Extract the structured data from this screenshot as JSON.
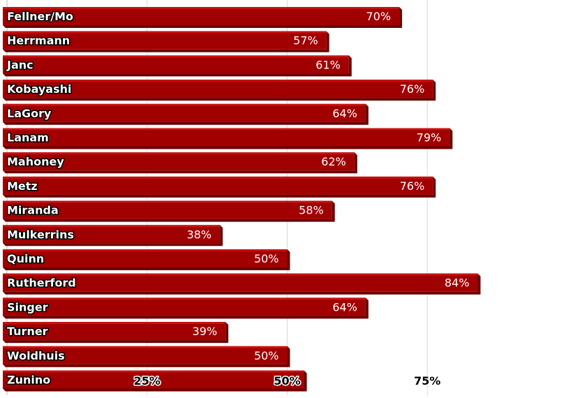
{
  "chart_data": {
    "type": "bar",
    "orientation": "horizontal",
    "categories": [
      "Fellner/Mo",
      "Herrmann",
      "Janc",
      "Kobayashi",
      "LaGory",
      "Lanam",
      "Mahoney",
      "Metz",
      "Miranda",
      "Mulkerrins",
      "Quinn",
      "Rutherford",
      "Singer",
      "Turner",
      "Woldhuis",
      "Zunino"
    ],
    "values": [
      70,
      57,
      61,
      76,
      64,
      79,
      62,
      76,
      58,
      38,
      50,
      84,
      64,
      39,
      50,
      53
    ],
    "value_labels": [
      "70%",
      "57%",
      "61%",
      "76%",
      "64%",
      "79%",
      "62%",
      "76%",
      "58%",
      "38%",
      "50%",
      "84%",
      "64%",
      "39%",
      "50%",
      ""
    ],
    "x_ticks": [
      25,
      50,
      75
    ],
    "x_tick_labels": [
      "25%",
      "50%",
      "75%"
    ],
    "xlim": [
      0,
      100
    ],
    "grid": true,
    "legend": "none",
    "colors": {
      "bar": "#a00000",
      "bar_top": "#c81010",
      "bar_side": "#6a0000",
      "grid": "#d8d8d8"
    }
  }
}
